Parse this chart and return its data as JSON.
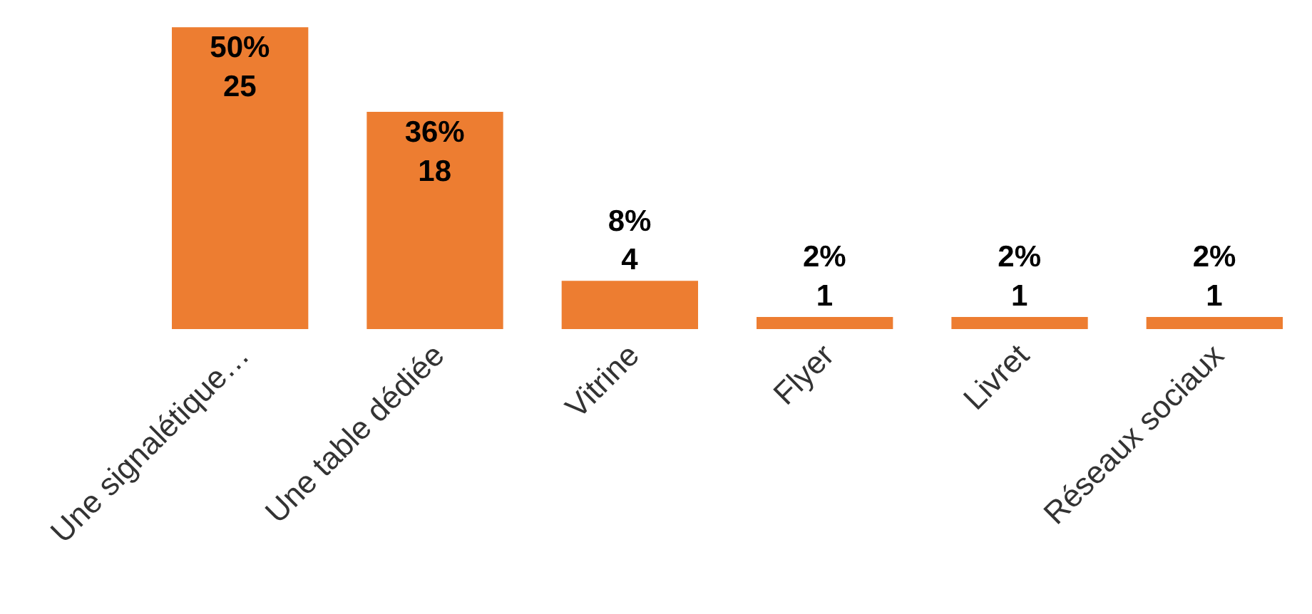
{
  "chart_data": {
    "type": "bar",
    "categories": [
      "Une signalétique…",
      "Une table dédiée",
      "Vitrine",
      "Flyer",
      "Livret",
      "Réseaux sociaux"
    ],
    "values": [
      25,
      18,
      4,
      1,
      1,
      1
    ],
    "value_labels": [
      "50%\n25",
      "36%\n18",
      "8%\n4",
      "2%\n1",
      "2%\n1",
      "2%\n1"
    ],
    "color": "#ed7d31",
    "tick_labels": "x"
  }
}
